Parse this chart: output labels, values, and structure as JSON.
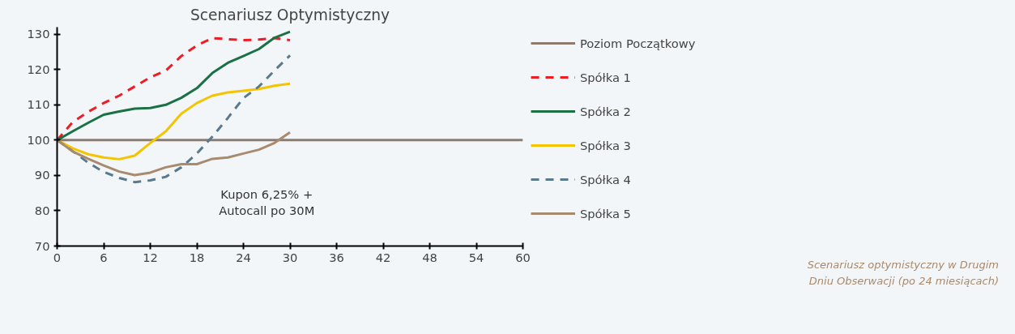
{
  "chart_data": {
    "type": "line",
    "title": "Scenariusz Optymistyczny",
    "xlim": [
      0,
      60
    ],
    "xticks": [
      0,
      6,
      12,
      18,
      24,
      30,
      36,
      42,
      48,
      54,
      60
    ],
    "ylim": [
      70,
      132
    ],
    "yticks": [
      70,
      80,
      90,
      100,
      110,
      120,
      130
    ],
    "x": [
      0,
      2,
      4,
      6,
      8,
      10,
      12,
      14,
      16,
      18,
      20,
      22,
      24,
      26,
      28,
      30
    ],
    "series": [
      {
        "name": "Poziom Początkowy",
        "color": "#8c7b6e",
        "x": [
          0,
          60
        ],
        "values": [
          100,
          100
        ],
        "line_style": "solid"
      },
      {
        "name": "Spółka 1",
        "color": "#ee1c25",
        "line_style": "dashed",
        "values": [
          100,
          105.1,
          108,
          110.5,
          112.6,
          115.2,
          117.8,
          119.7,
          123.8,
          126.8,
          128.9,
          128.6,
          128.3,
          128.5,
          128.9,
          128.3
        ]
      },
      {
        "name": "Spółka 2",
        "color": "#1a7244",
        "line_style": "solid",
        "values": [
          100,
          102.5,
          104.9,
          107.2,
          108.1,
          108.9,
          109.1,
          110,
          112,
          114.7,
          119,
          121.9,
          123.8,
          125.8,
          129,
          130.7
        ]
      },
      {
        "name": "Spółka 3",
        "color": "#f5c400",
        "line_style": "solid",
        "values": [
          100,
          97.7,
          96,
          95.1,
          94.6,
          95.6,
          99.2,
          102.5,
          107.5,
          110.5,
          112.6,
          113.5,
          114,
          114.5,
          115.4,
          116
        ]
      },
      {
        "name": "Spółka 4",
        "color": "#5a7a8c",
        "line_style": "dashed",
        "values": [
          100,
          96.9,
          93.6,
          91,
          89.3,
          88.1,
          88.6,
          89.6,
          92.3,
          96.2,
          101,
          106.3,
          111.9,
          115.2,
          119.7,
          124
        ]
      },
      {
        "name": "Spółka 5",
        "color": "#a88a6e",
        "line_style": "solid",
        "values": [
          100,
          96.8,
          94.7,
          92.8,
          91.1,
          90.1,
          90.8,
          92.3,
          93.2,
          93.2,
          94.7,
          95.1,
          96.2,
          97.3,
          99.2,
          102.2
        ]
      }
    ],
    "annotations": [
      "Kupon 6,25% +\nAutocall po 30M",
      "Scenariusz optymistyczny w Drugim Dniu Obserwacji (po 24 miesiącach)"
    ],
    "legend": "right",
    "grid": false,
    "marker": "none"
  }
}
